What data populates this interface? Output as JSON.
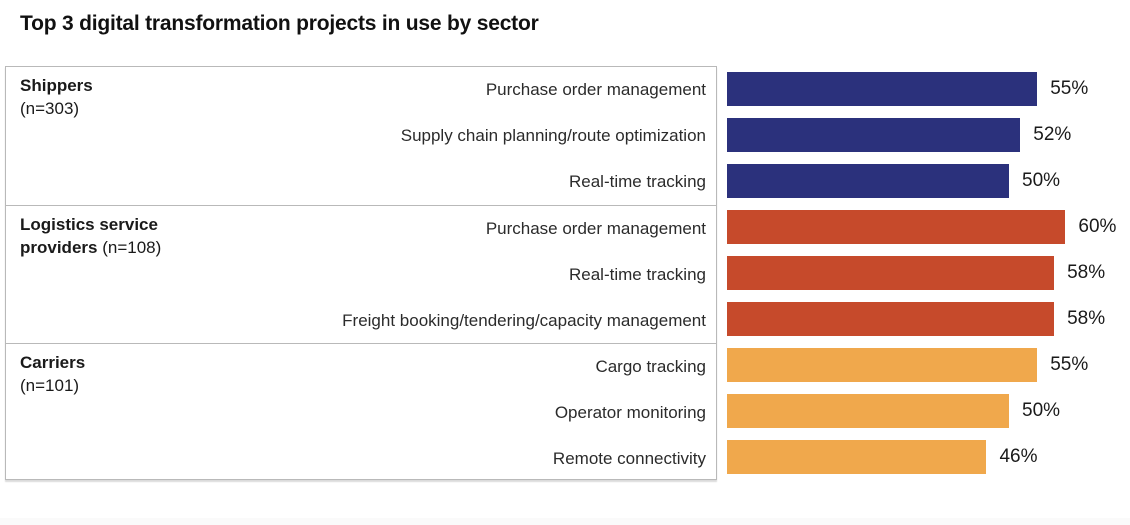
{
  "page": {
    "title": "Top 3 digital transformation projects in use by sector"
  },
  "colors": {
    "shippers_bar": "#2B317C",
    "logistics_bar": "#C64A2B",
    "carriers_bar": "#F0A84C",
    "panel_border": "#b9b9b9",
    "title_text": "#111111",
    "label_text": "#2b2b2b"
  },
  "chart_data": {
    "type": "bar",
    "orientation": "horizontal",
    "title": "Top 3 digital transformation projects in use by sector",
    "value_unit": "%",
    "value_axis_max": 64,
    "grid": false,
    "legend": "none",
    "groups": [
      {
        "sector": "Shippers",
        "sample_size_label": "(n=303)",
        "color": "#2B317C",
        "sector_lines": [
          [
            {
              "text": "Shippers",
              "bold": true
            }
          ],
          [
            {
              "text": "(n=303)",
              "bold": false
            }
          ]
        ],
        "items": [
          {
            "label": "Purchase order management",
            "value": 55,
            "value_label": "55%"
          },
          {
            "label": "Supply chain planning/route optimization",
            "value": 52,
            "value_label": "52%"
          },
          {
            "label": "Real-time tracking",
            "value": 50,
            "value_label": "50%"
          }
        ]
      },
      {
        "sector": "Logistics service providers",
        "sample_size_label": "(n=108)",
        "color": "#C64A2B",
        "sector_lines": [
          [
            {
              "text": "Logistics service",
              "bold": true
            }
          ],
          [
            {
              "text": "providers ",
              "bold": true
            },
            {
              "text": "(n=108)",
              "bold": false
            }
          ]
        ],
        "items": [
          {
            "label": "Purchase order management",
            "value": 60,
            "value_label": "60%"
          },
          {
            "label": "Real-time tracking",
            "value": 58,
            "value_label": "58%"
          },
          {
            "label": "Freight booking/tendering/capacity management",
            "value": 58,
            "value_label": "58%"
          }
        ]
      },
      {
        "sector": "Carriers",
        "sample_size_label": "(n=101)",
        "color": "#F0A84C",
        "sector_lines": [
          [
            {
              "text": "Carriers",
              "bold": true
            }
          ],
          [
            {
              "text": "(n=101)",
              "bold": false
            }
          ]
        ],
        "items": [
          {
            "label": "Cargo tracking",
            "value": 55,
            "value_label": "55%"
          },
          {
            "label": "Operator monitoring",
            "value": 50,
            "value_label": "50%"
          },
          {
            "label": "Remote connectivity",
            "value": 46,
            "value_label": "46%"
          }
        ]
      }
    ]
  }
}
